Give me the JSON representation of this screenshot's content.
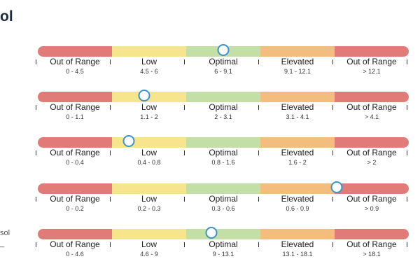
{
  "page": {
    "title_fragment": "ol",
    "side_text_1": "sol",
    "side_text_2": "_"
  },
  "colors": {
    "out_of_range": "#e07b78",
    "low": "#f6e58d",
    "optimal": "#c3dfa6",
    "elevated": "#f3bd7e",
    "marker_border": "#3a93cf"
  },
  "zone_labels": [
    "Out of Range",
    "Low",
    "Optimal",
    "Elevated",
    "Out of Range"
  ],
  "rows": [
    {
      "ranges": [
        "0 - 4.5",
        "4.5 - 6",
        "6 - 9.1",
        "9.1 - 12.1",
        "> 12.1"
      ],
      "marker_fraction": 0.5
    },
    {
      "ranges": [
        "0 - 1.1",
        "1.1 - 2",
        "2 - 3.1",
        "3.1 - 4.1",
        "> 4.1"
      ],
      "marker_fraction": 0.286
    },
    {
      "ranges": [
        "0 - 0.4",
        "0.4 - 0.8",
        "0.8 - 1.6",
        "1.6 - 2",
        "> 2"
      ],
      "marker_fraction": 0.245
    },
    {
      "ranges": [
        "0 - 0.2",
        "0.2 - 0.3",
        "0.3 - 0.6",
        "0.6 - 0.9",
        "> 0.9"
      ],
      "marker_fraction": 0.806
    },
    {
      "ranges": [
        "0 - 4.6",
        "4.6 - 9",
        "9 - 13.1",
        "13.1 - 18.1",
        "> 18.1"
      ],
      "marker_fraction": 0.467
    }
  ]
}
